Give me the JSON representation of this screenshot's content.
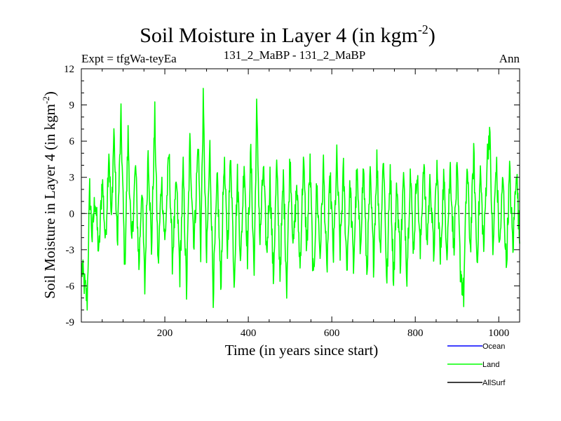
{
  "chart_data": {
    "type": "line",
    "title": "Soil Moisture in Layer 4 (in kgm",
    "title_sup": "-2",
    "title_close": ")",
    "subtitle_left": "Expt = tfgWa-teyEa",
    "subtitle_center": "131_2_MaBP - 131_2_MaBP",
    "subtitle_right": "Ann",
    "xlabel": "Time (in years since start)",
    "ylabel": "Soil Moisture in Layer 4 (in kgm",
    "ylabel_sup": "-2",
    "ylabel_close": ")",
    "xlim": [
      0,
      1050
    ],
    "ylim": [
      -9,
      12
    ],
    "xticks": [
      200,
      400,
      600,
      800,
      1000
    ],
    "xtick_labels": [
      "200",
      "400",
      "600",
      "800",
      "1000"
    ],
    "yticks": [
      -9,
      -6,
      -3,
      0,
      3,
      6,
      9,
      12
    ],
    "ytick_labels": [
      "-9",
      "-6",
      "-3",
      "0",
      "3",
      "6",
      "9",
      "12"
    ],
    "zero_line": 0,
    "legend": [
      {
        "name": "Ocean",
        "color": "#0000ff"
      },
      {
        "name": "Land",
        "color": "#00ff00"
      },
      {
        "name": "AllSurf",
        "color": "#000000"
      }
    ],
    "series": [
      {
        "name": "Land",
        "color": "#00ff00",
        "x_start": 1,
        "x_step": 1,
        "anchors": [
          [
            1,
            -4.5
          ],
          [
            8,
            -6.0
          ],
          [
            14,
            -7.2
          ],
          [
            20,
            2.0
          ],
          [
            26,
            -2.0
          ],
          [
            33,
            1.5
          ],
          [
            42,
            -3.5
          ],
          [
            50,
            3.0
          ],
          [
            58,
            -2.5
          ],
          [
            66,
            5.5
          ],
          [
            72,
            -1.0
          ],
          [
            78,
            7.0
          ],
          [
            86,
            -2.5
          ],
          [
            95,
            7.8
          ],
          [
            104,
            -4.5
          ],
          [
            112,
            6.5
          ],
          [
            120,
            -3.0
          ],
          [
            130,
            4.0
          ],
          [
            138,
            -4.5
          ],
          [
            145,
            2.5
          ],
          [
            152,
            -6.2
          ],
          [
            160,
            5.5
          ],
          [
            168,
            -3.0
          ],
          [
            176,
            8.0
          ],
          [
            184,
            -4.5
          ],
          [
            192,
            3.0
          ],
          [
            200,
            -2.5
          ],
          [
            210,
            5.0
          ],
          [
            218,
            -3.8
          ],
          [
            228,
            2.5
          ],
          [
            236,
            -5.0
          ],
          [
            244,
            3.5
          ],
          [
            252,
            -6.5
          ],
          [
            260,
            5.8
          ],
          [
            270,
            -2.5
          ],
          [
            280,
            6.0
          ],
          [
            286,
            -3.0
          ],
          [
            292,
            9.1
          ],
          [
            300,
            -4.0
          ],
          [
            308,
            5.5
          ],
          [
            316,
            -6.5
          ],
          [
            326,
            3.0
          ],
          [
            334,
            -6.2
          ],
          [
            342,
            4.5
          ],
          [
            350,
            -3.0
          ],
          [
            358,
            5.0
          ],
          [
            366,
            -5.5
          ],
          [
            374,
            3.0
          ],
          [
            382,
            -4.0
          ],
          [
            390,
            4.5
          ],
          [
            398,
            -3.5
          ],
          [
            406,
            5.0
          ],
          [
            414,
            -5.0
          ],
          [
            420,
            8.5
          ],
          [
            428,
            -2.5
          ],
          [
            436,
            4.0
          ],
          [
            444,
            -3.5
          ],
          [
            452,
            3.0
          ],
          [
            460,
            -5.5
          ],
          [
            468,
            4.0
          ],
          [
            476,
            -5.0
          ],
          [
            484,
            3.0
          ],
          [
            492,
            -6.0
          ],
          [
            500,
            5.0
          ],
          [
            508,
            -3.0
          ],
          [
            516,
            2.5
          ],
          [
            524,
            -4.5
          ],
          [
            532,
            4.5
          ],
          [
            540,
            -3.0
          ],
          [
            548,
            4.0
          ],
          [
            556,
            -6.0
          ],
          [
            564,
            2.5
          ],
          [
            572,
            -3.5
          ],
          [
            580,
            4.0
          ],
          [
            588,
            -5.0
          ],
          [
            596,
            3.0
          ],
          [
            604,
            -3.5
          ],
          [
            612,
            4.5
          ],
          [
            620,
            -3.0
          ],
          [
            628,
            3.5
          ],
          [
            636,
            -4.5
          ],
          [
            644,
            2.5
          ],
          [
            652,
            -4.5
          ],
          [
            660,
            3.5
          ],
          [
            668,
            -3.0
          ],
          [
            676,
            4.0
          ],
          [
            684,
            -5.0
          ],
          [
            692,
            3.0
          ],
          [
            700,
            -4.0
          ],
          [
            708,
            4.5
          ],
          [
            716,
            -3.0
          ],
          [
            724,
            5.0
          ],
          [
            732,
            -6.0
          ],
          [
            740,
            4.0
          ],
          [
            748,
            -5.5
          ],
          [
            756,
            2.5
          ],
          [
            764,
            -4.0
          ],
          [
            772,
            3.0
          ],
          [
            780,
            -5.0
          ],
          [
            788,
            3.5
          ],
          [
            796,
            -3.0
          ],
          [
            804,
            4.0
          ],
          [
            812,
            -3.5
          ],
          [
            820,
            4.5
          ],
          [
            828,
            -2.5
          ],
          [
            836,
            3.0
          ],
          [
            844,
            -3.5
          ],
          [
            852,
            4.0
          ],
          [
            860,
            -4.0
          ],
          [
            868,
            3.0
          ],
          [
            876,
            -3.0
          ],
          [
            884,
            4.0
          ],
          [
            892,
            -3.0
          ],
          [
            900,
            3.5
          ],
          [
            908,
            -4.5
          ],
          [
            916,
            -6.8
          ],
          [
            924,
            4.0
          ],
          [
            932,
            -3.0
          ],
          [
            940,
            5.0
          ],
          [
            948,
            -4.0
          ],
          [
            956,
            3.5
          ],
          [
            964,
            -3.0
          ],
          [
            972,
            4.5
          ],
          [
            978,
            7.0
          ],
          [
            986,
            -3.5
          ],
          [
            994,
            4.5
          ],
          [
            1002,
            -3.0
          ],
          [
            1010,
            3.0
          ],
          [
            1018,
            -4.5
          ],
          [
            1026,
            3.5
          ],
          [
            1034,
            -3.0
          ],
          [
            1042,
            4.0
          ],
          [
            1050,
            -2.5
          ]
        ]
      }
    ]
  }
}
